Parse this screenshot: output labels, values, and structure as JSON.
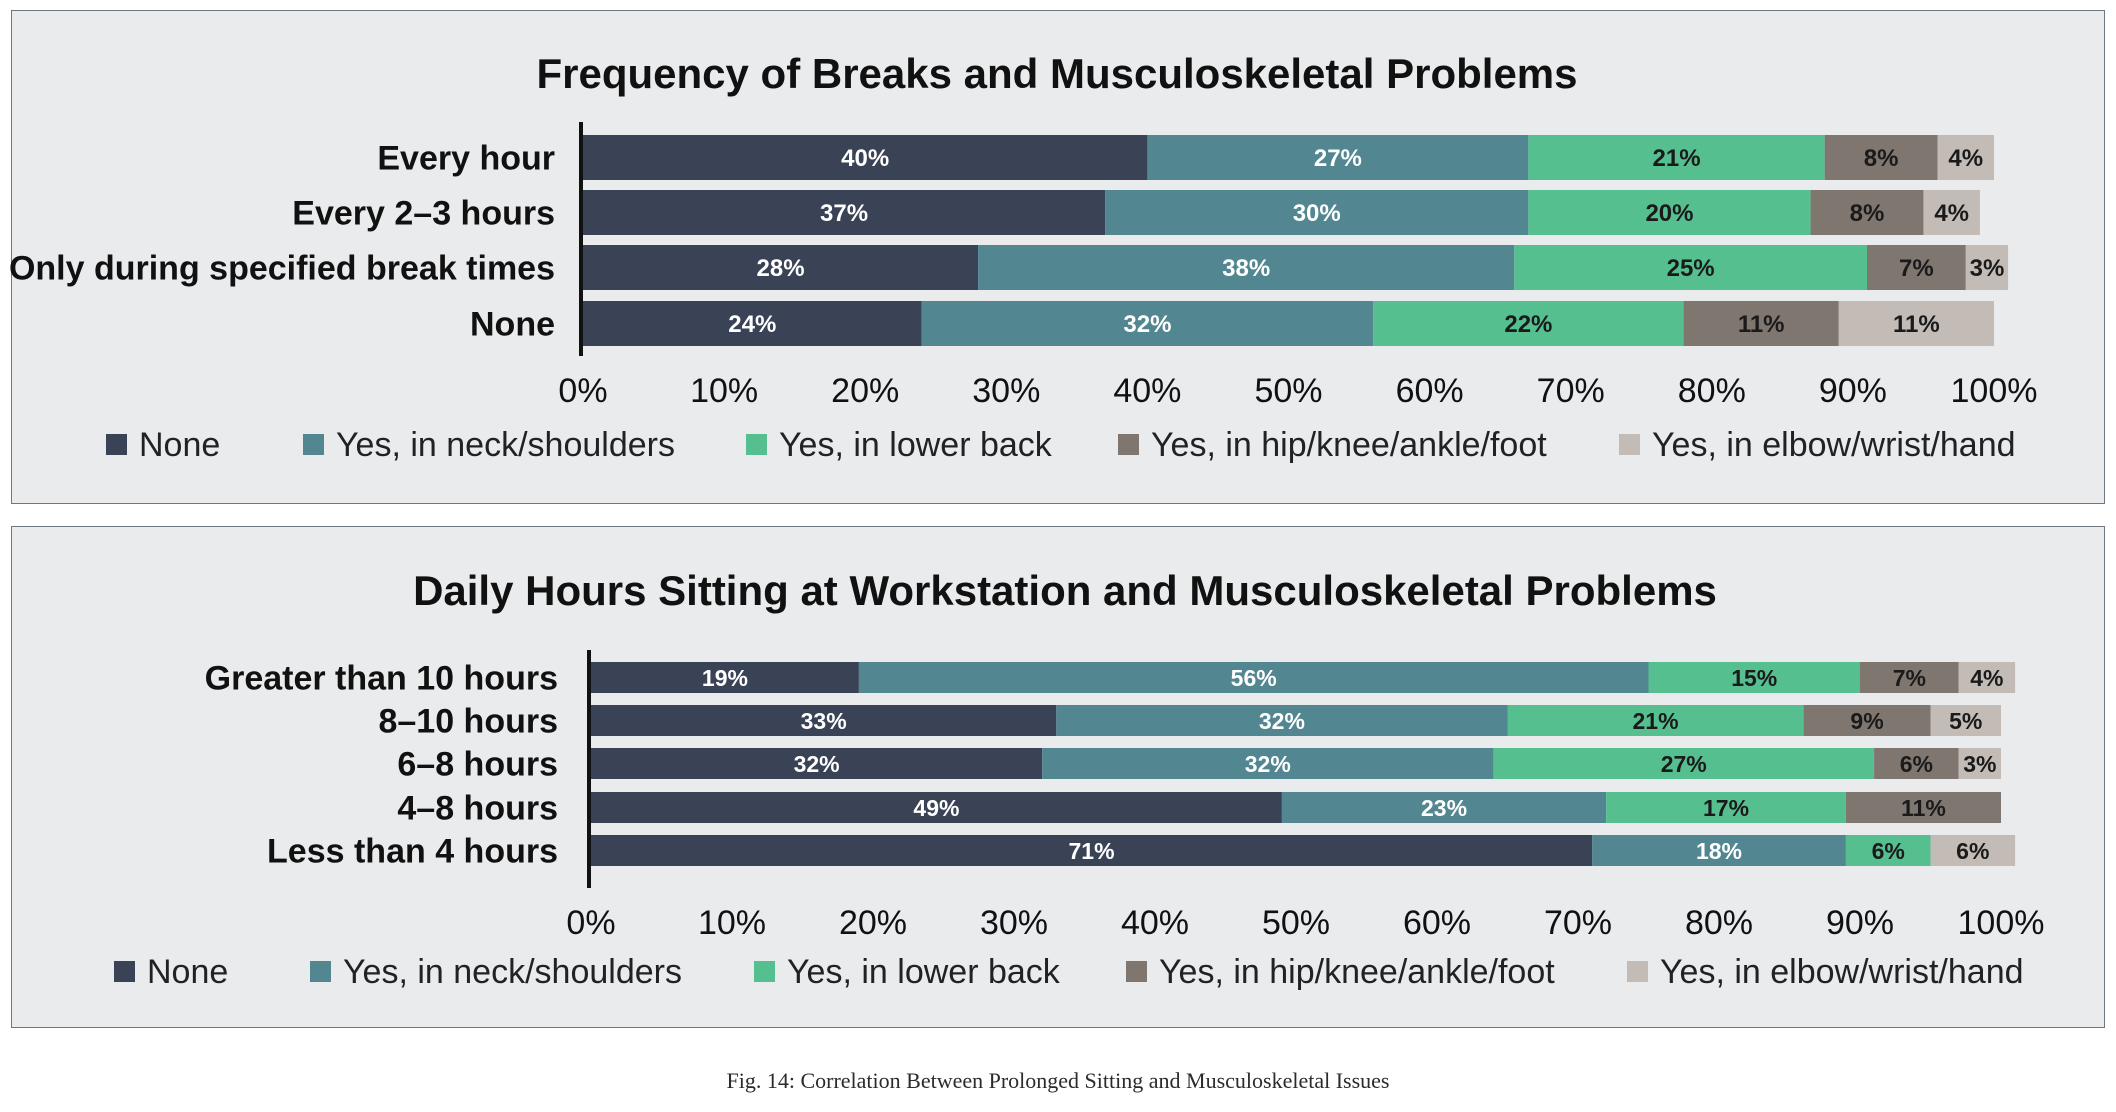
{
  "caption": "Fig. 14: Correlation Between Prolonged Sitting and Musculoskeletal Issues",
  "chart_data": [
    {
      "type": "bar",
      "orientation": "horizontal",
      "stacked": true,
      "title": "Frequency of Breaks and Musculoskeletal Problems",
      "categories": [
        "Every hour",
        "Every 2–3 hours",
        "Only during specified break times",
        "None"
      ],
      "series": [
        {
          "name": "None",
          "color": "#3a4256",
          "values": [
            40,
            37,
            28,
            24
          ]
        },
        {
          "name": "Yes, in neck/shoulders",
          "color": "#528792",
          "values": [
            27,
            30,
            38,
            32
          ]
        },
        {
          "name": "Yes, in lower back",
          "color": "#55bf90",
          "values": [
            21,
            20,
            25,
            22
          ]
        },
        {
          "name": "Yes, in hip/knee/ankle/foot",
          "color": "#7f7670",
          "values": [
            8,
            8,
            7,
            11
          ]
        },
        {
          "name": "Yes, in elbow/wrist/hand",
          "color": "#c3bcb6",
          "values": [
            4,
            4,
            3,
            11
          ]
        }
      ],
      "data_labels": [
        [
          "40%",
          "37%",
          "28%",
          "24%"
        ],
        [
          "27%",
          "30%",
          "38%",
          "32%"
        ],
        [
          "21%",
          "20%",
          "25%",
          "22%"
        ],
        [
          "8%",
          "8%",
          "7%",
          "11%"
        ],
        [
          "4%",
          "4%",
          "3%",
          "11%"
        ]
      ],
      "xlim": [
        0,
        100
      ],
      "x_ticks": [
        "0%",
        "10%",
        "20%",
        "30%",
        "40%",
        "50%",
        "60%",
        "70%",
        "80%",
        "90%",
        "100%"
      ],
      "legend_position": "bottom",
      "grid": false
    },
    {
      "type": "bar",
      "orientation": "horizontal",
      "stacked": true,
      "title": "Daily Hours Sitting at Workstation and Musculoskeletal Problems",
      "categories": [
        "Greater than 10 hours",
        "8–10 hours",
        "6–8 hours",
        "4–8 hours",
        "Less than 4 hours"
      ],
      "series": [
        {
          "name": "None",
          "color": "#3a4256",
          "values": [
            19,
            33,
            32,
            49,
            71
          ]
        },
        {
          "name": "Yes, in neck/shoulders",
          "color": "#528792",
          "values": [
            56,
            32,
            32,
            23,
            18
          ]
        },
        {
          "name": "Yes, in lower back",
          "color": "#55bf90",
          "values": [
            15,
            21,
            27,
            17,
            6
          ]
        },
        {
          "name": "Yes, in hip/knee/ankle/foot",
          "color": "#7f7670",
          "values": [
            7,
            9,
            6,
            11,
            0
          ]
        },
        {
          "name": "Yes, in elbow/wrist/hand",
          "color": "#c3bcb6",
          "values": [
            4,
            5,
            3,
            0,
            6
          ]
        }
      ],
      "data_labels": [
        [
          "19%",
          "33%",
          "32%",
          "49%",
          "71%"
        ],
        [
          "56%",
          "32%",
          "32%",
          "23%",
          "18%"
        ],
        [
          "15%",
          "21%",
          "27%",
          "17%",
          "6%"
        ],
        [
          "7%",
          "9%",
          "6%",
          "11%",
          ""
        ],
        [
          "4%",
          "5%",
          "3%",
          "",
          "6%"
        ]
      ],
      "xlim": [
        0,
        100
      ],
      "x_ticks": [
        "0%",
        "10%",
        "20%",
        "30%",
        "40%",
        "50%",
        "60%",
        "70%",
        "80%",
        "90%",
        "100%"
      ],
      "legend_position": "bottom",
      "grid": false
    }
  ]
}
